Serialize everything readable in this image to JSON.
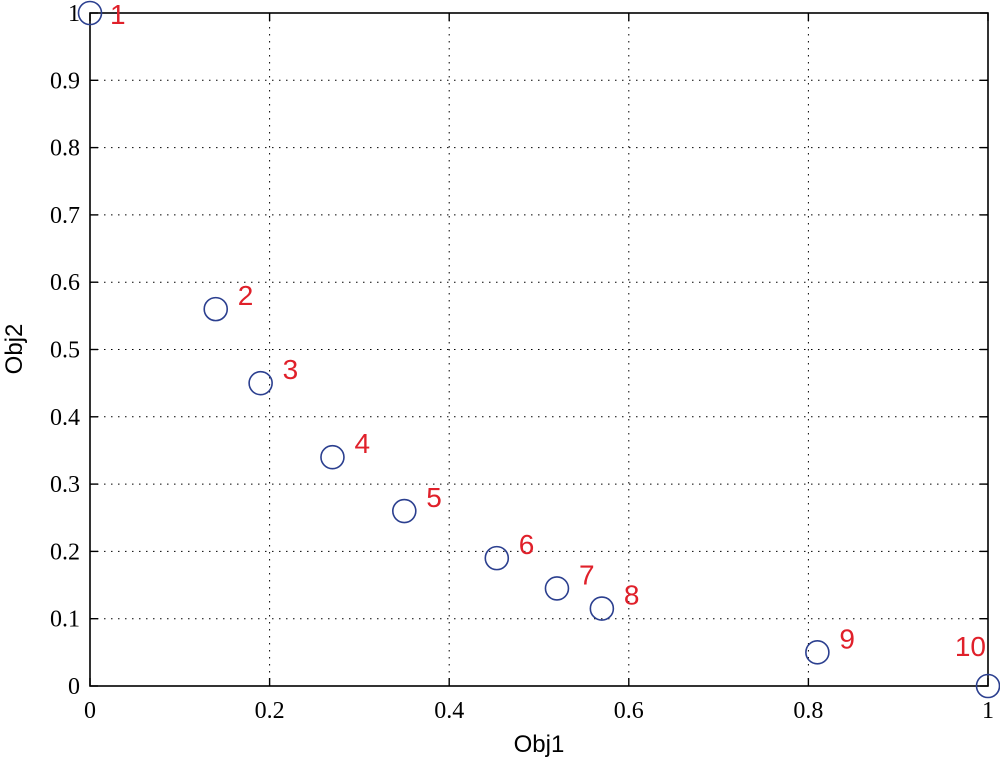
{
  "chart_data": {
    "type": "scatter",
    "xlabel": "Obj1",
    "ylabel": "Obj2",
    "xlim": [
      0,
      1
    ],
    "ylim": [
      0,
      1
    ],
    "xticks": [
      0,
      0.2,
      0.4,
      0.6,
      0.8,
      1
    ],
    "xtick_labels": [
      "0",
      "0.2",
      "0.4",
      "0.6",
      "0.8",
      "1"
    ],
    "yticks": [
      0,
      0.1,
      0.2,
      0.3,
      0.4,
      0.5,
      0.6,
      0.7,
      0.8,
      0.9,
      1
    ],
    "ytick_labels": [
      "0",
      "0.1",
      "0.2",
      "0.3",
      "0.4",
      "0.5",
      "0.6",
      "0.7",
      "0.8",
      "0.9",
      "1"
    ],
    "grid": true,
    "marker": "circle-open",
    "colors": {
      "marker": "#2b3f8f",
      "label": "#e0202a",
      "axes": "#000000"
    },
    "points": [
      {
        "label": "1",
        "x": 0.0,
        "y": 1.0
      },
      {
        "label": "2",
        "x": 0.14,
        "y": 0.56
      },
      {
        "label": "3",
        "x": 0.19,
        "y": 0.45
      },
      {
        "label": "4",
        "x": 0.27,
        "y": 0.34
      },
      {
        "label": "5",
        "x": 0.35,
        "y": 0.26
      },
      {
        "label": "6",
        "x": 0.453,
        "y": 0.19
      },
      {
        "label": "7",
        "x": 0.52,
        "y": 0.145
      },
      {
        "label": "8",
        "x": 0.57,
        "y": 0.115
      },
      {
        "label": "9",
        "x": 0.81,
        "y": 0.05
      },
      {
        "label": "10",
        "x": 1.0,
        "y": 0.0
      }
    ]
  }
}
